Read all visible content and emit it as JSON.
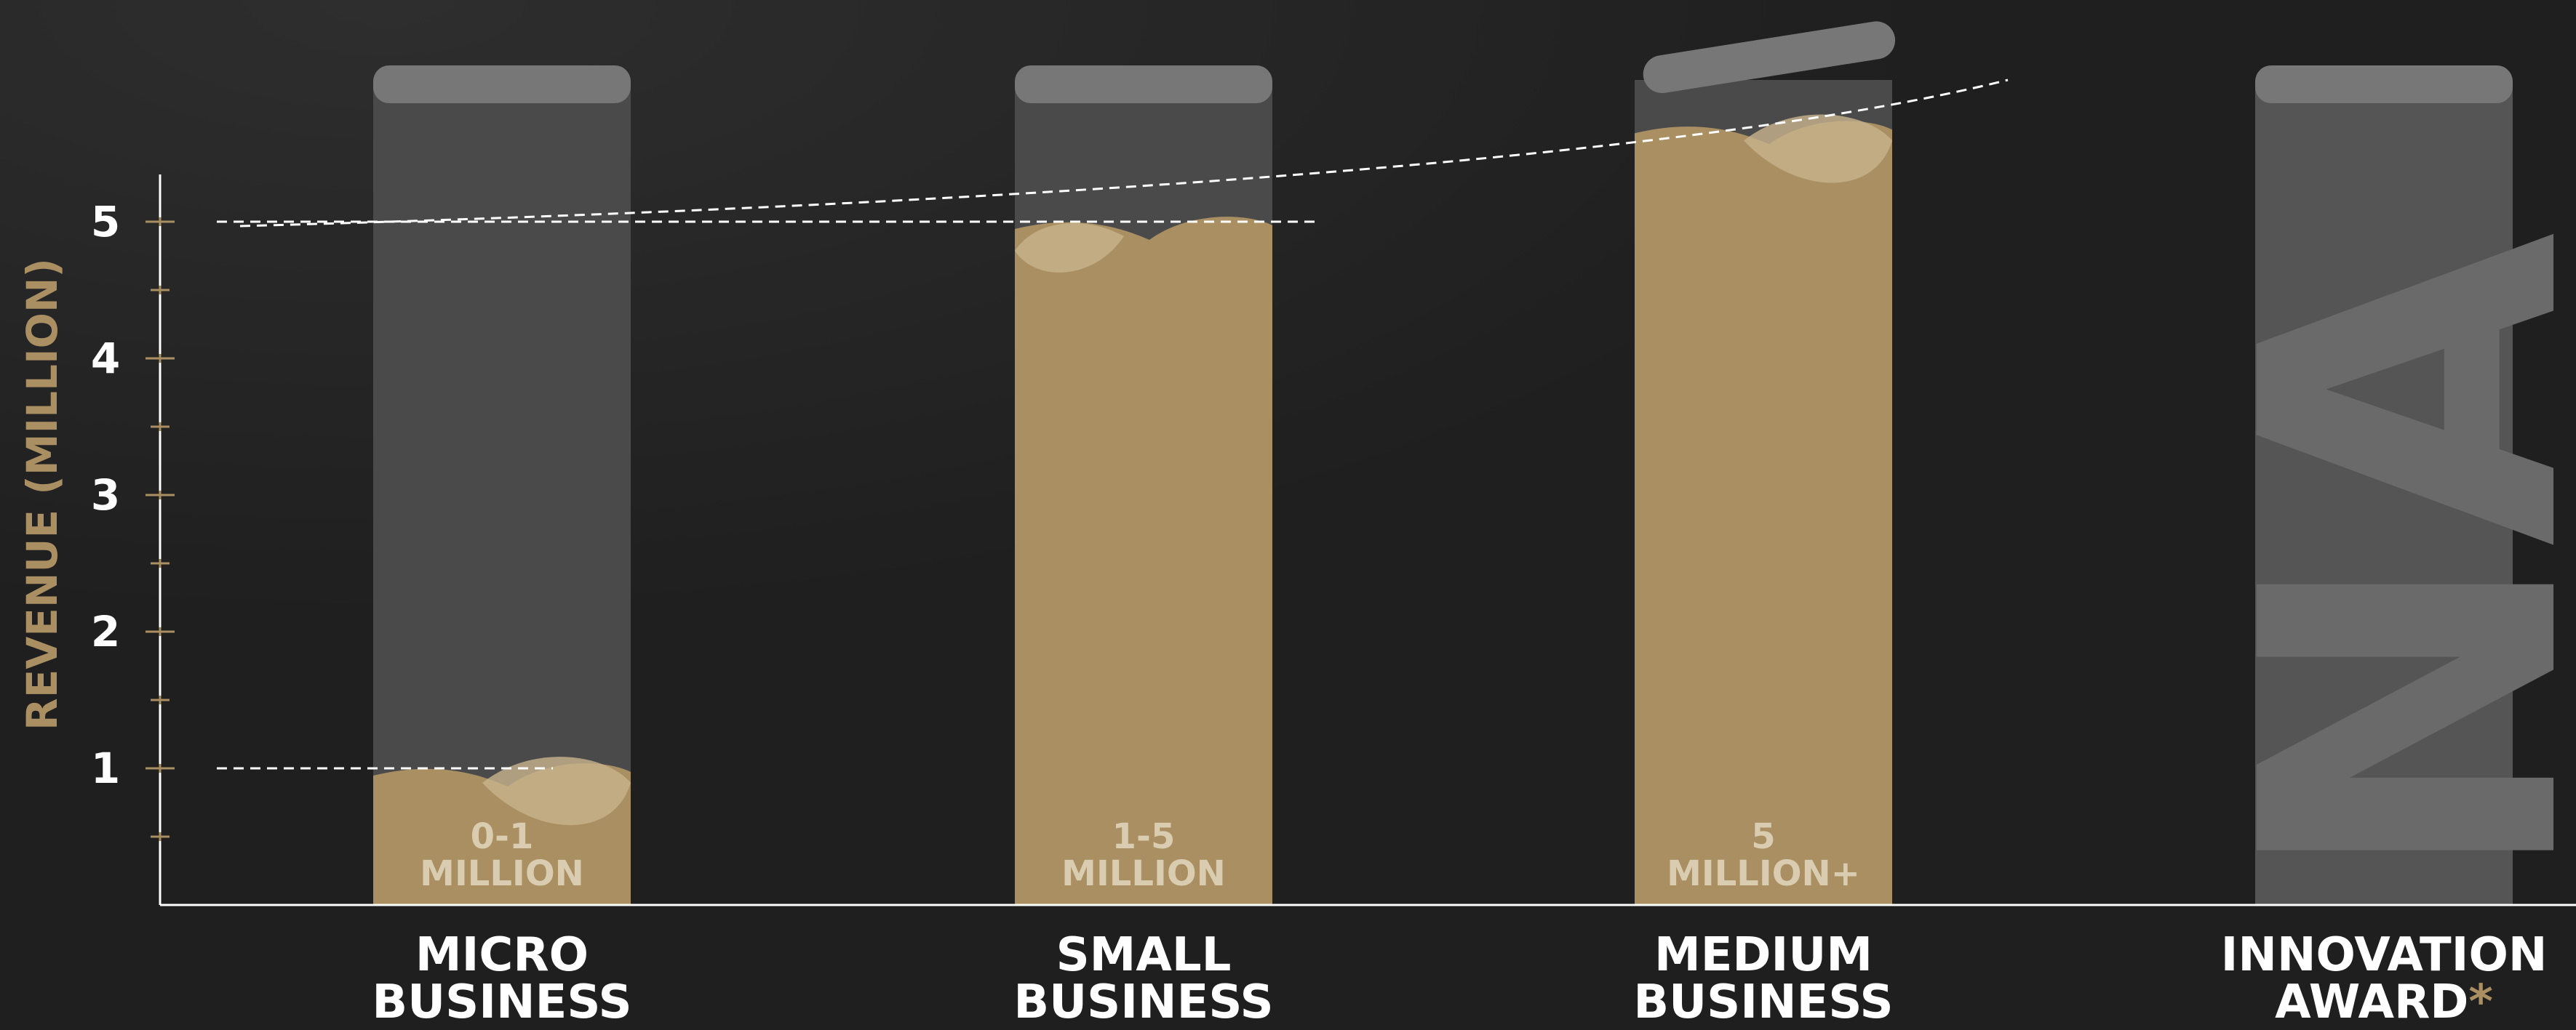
{
  "chart_data": {
    "type": "bar",
    "title": "",
    "xlabel": "",
    "ylabel": "REVENUE (MILLION)",
    "ylim": [
      0,
      5.3
    ],
    "yticks": [
      1,
      2,
      3,
      4,
      5
    ],
    "grid": false,
    "categories": [
      {
        "line1": "MICRO",
        "line2": "BUSINESS",
        "suffix": ""
      },
      {
        "line1": "SMALL",
        "line2": "BUSINESS",
        "suffix": ""
      },
      {
        "line1": "MEDIUM",
        "line2": "BUSINESS",
        "suffix": ""
      },
      {
        "line1": "INNOVATION",
        "line2": "AWARD",
        "suffix": "*"
      }
    ],
    "values": [
      1,
      5,
      5.7,
      null
    ],
    "bar_labels": [
      {
        "line1": "0-1",
        "line2": "MILLION"
      },
      {
        "line1": "1-5",
        "line2": "MILLION"
      },
      {
        "line1": "5",
        "line2": "MILLION+"
      },
      {
        "line1": "",
        "line2": ""
      }
    ],
    "watermark": "NA",
    "reference_lines": [
      1,
      5
    ],
    "trend": "dashed-curve"
  },
  "colors": {
    "background": "#1f1f1f",
    "fill": "#a98f62",
    "fill_light": "#c8b38d",
    "jar": "#4a4a4a",
    "lid": "#777777",
    "accent": "#a98f62",
    "text": "#ffffff"
  }
}
